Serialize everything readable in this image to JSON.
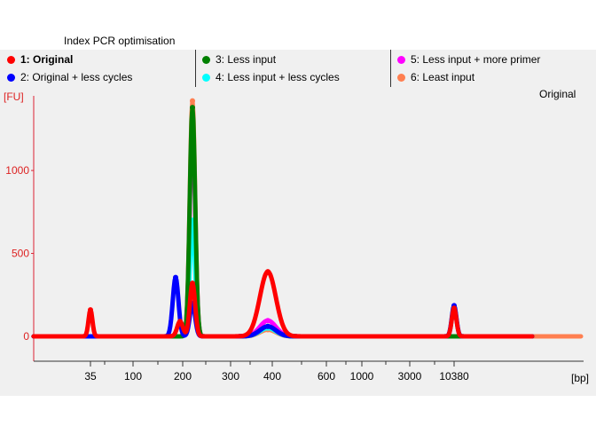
{
  "chart_data": {
    "type": "line",
    "title": "Index PCR optimisation",
    "subtitle": "Original",
    "ylabel": "[FU]",
    "xlabel": "[bp]",
    "ylim": [
      -150,
      1450
    ],
    "y_ticks": [
      0,
      500,
      1000
    ],
    "x_tick_labels": [
      "35",
      "100",
      "200",
      "300",
      "400",
      "600",
      "1000",
      "3000",
      "10380"
    ],
    "series": [
      {
        "name": "1: Original",
        "color": "#ff0000",
        "peaks": [
          {
            "x": "35",
            "y": 160
          },
          {
            "x": "200",
            "y": 90
          },
          {
            "x": "218",
            "y": 320
          },
          {
            "x": "390",
            "y": 390
          },
          {
            "x": "10380",
            "y": 170
          }
        ]
      },
      {
        "name": "2: Original + less cycles",
        "color": "#0000ff",
        "peaks": [
          {
            "x": "190",
            "y": 355
          },
          {
            "x": "218",
            "y": 200
          },
          {
            "x": "390",
            "y": 60
          },
          {
            "x": "10380",
            "y": 185
          }
        ]
      },
      {
        "name": "3: Less input",
        "color": "#008000",
        "peaks": [
          {
            "x": "218",
            "y": 1380
          },
          {
            "x": "390",
            "y": 60
          }
        ]
      },
      {
        "name": "4: Less input + less cycles",
        "color": "#00ffff",
        "peaks": [
          {
            "x": "218",
            "y": 700
          },
          {
            "x": "390",
            "y": 50
          },
          {
            "x": "10380",
            "y": 180
          }
        ]
      },
      {
        "name": "5: Less input + more primer",
        "color": "#ff00ff",
        "peaks": [
          {
            "x": "218",
            "y": 1300
          },
          {
            "x": "390",
            "y": 95
          }
        ]
      },
      {
        "name": "6: Least input",
        "color": "#ff7f50",
        "peaks": [
          {
            "x": "218",
            "y": 1420
          },
          {
            "x": "390",
            "y": 40
          }
        ]
      }
    ]
  }
}
